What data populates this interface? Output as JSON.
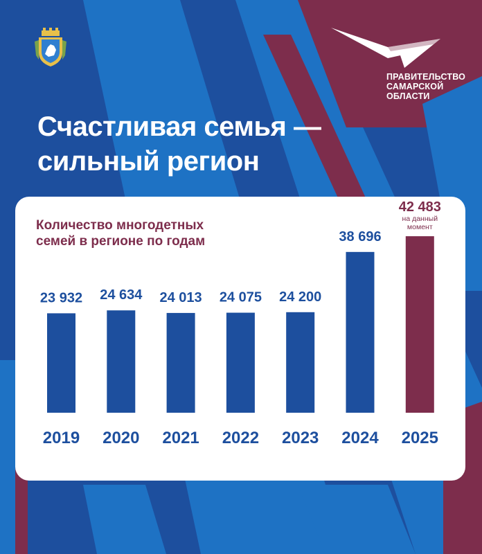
{
  "page": {
    "headline_lines": [
      "Счастливая семья —",
      "сильный регион"
    ],
    "org_lines": [
      "ПРАВИТЕЛЬСТВО",
      "САМАРСКОЙ",
      "ОБЛАСТИ"
    ],
    "coat_icon": "coat-of-arms-icon",
    "logo_icon": "government-wing-logo-icon"
  },
  "colors": {
    "background_blue": "#1d4f9e",
    "light_blue": "#1e72c4",
    "maroon": "#7d2d4c",
    "bar_blue": "#1d4f9e",
    "bar_highlight": "#7d2d4c",
    "card": "#ffffff"
  },
  "chart_data": {
    "type": "bar",
    "title_lines": [
      "Количество многодетных",
      "семей в регионе по годам"
    ],
    "categories": [
      "2019",
      "2020",
      "2021",
      "2022",
      "2023",
      "2024",
      "2025"
    ],
    "values": [
      23932,
      24634,
      24013,
      24075,
      24200,
      38696,
      42483
    ],
    "value_labels": [
      "23 932",
      "24 634",
      "24 013",
      "24 075",
      "24 200",
      "38 696",
      "42 483"
    ],
    "highlight_index": 6,
    "highlight_note_lines": [
      "на данный",
      "момент"
    ],
    "ylim": [
      0,
      48000
    ],
    "grid": false,
    "legend": "none"
  }
}
